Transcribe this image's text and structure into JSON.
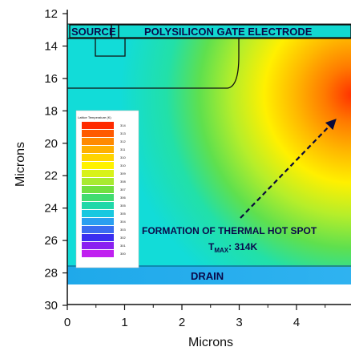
{
  "axes": {
    "x_label": "Microns",
    "y_label": "Microns",
    "x_ticks": [
      "0",
      "1",
      "2",
      "3",
      "4"
    ],
    "y_ticks": [
      "12",
      "14",
      "16",
      "18",
      "20",
      "22",
      "24",
      "26",
      "28",
      "30"
    ],
    "x_range": [
      0,
      4.9
    ],
    "y_range": [
      12,
      30
    ],
    "y_inverted": true
  },
  "regions": {
    "source": "SOURCE",
    "gate": "POLYSILICON GATE ELECTRODE",
    "drain": "DRAIN"
  },
  "annotation": {
    "line1": "FORMATION OF THERMAL HOT SPOT",
    "tmax_prefix": "T",
    "tmax_sub": "MAX",
    "tmax_suffix": ": 314K"
  },
  "legend": {
    "title": "Lattice Temperature (K)",
    "values": [
      "314",
      "313",
      "312",
      "311",
      "310",
      "310",
      "309",
      "308",
      "307",
      "306",
      "305",
      "305",
      "304",
      "303",
      "302",
      "301",
      "300"
    ]
  },
  "colors": {
    "hot": "#ff3b00",
    "warm": "#ffe600",
    "mid": "#7fe040",
    "cool": "#19e3c8",
    "band_blue": "#2a9ff0",
    "drain_blue": "#33aef5"
  }
}
